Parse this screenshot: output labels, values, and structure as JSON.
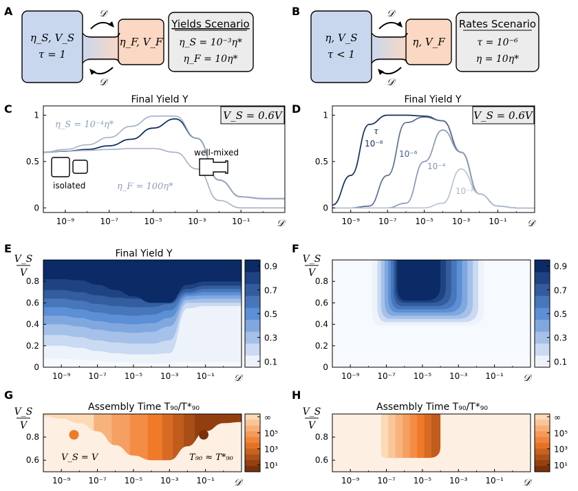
{
  "colors": {
    "blue_box": "#c9d7ee",
    "orange_box": "#fbd8c3",
    "grey_box": "#ececec",
    "navy": "#11305f",
    "slate": "#8f9fba",
    "orange_dark": "#8a3a0c",
    "orange_mid": "#f07a2a",
    "orange_light": "#fdf0e3"
  },
  "panel_labels": {
    "a": "A",
    "b": "B",
    "c": "C",
    "d": "D",
    "e": "E",
    "f": "F",
    "g": "G",
    "h": "H"
  },
  "scenario_a": {
    "left_line1": "η_S, V_S",
    "left_line2": "τ = 1",
    "right_line": "η_F, V_F",
    "arrow_label": "𝒟",
    "title": "Yields Scenario",
    "line1": "η_S = 10⁻³η*",
    "line2": "η_F = 10η*"
  },
  "scenario_b": {
    "left_line1": "η, V_S",
    "left_line2": "τ < 1",
    "right_line": "η, V_F",
    "arrow_label": "𝒟",
    "title": "Rates Scenario",
    "line1": "τ = 10⁻⁶",
    "line2": "η = 10η*"
  },
  "x_tick_labels": [
    "10⁻⁹",
    "10⁻⁷",
    "10⁻⁵",
    "10⁻³",
    "10⁻¹"
  ],
  "x_axis_label": "𝒟",
  "chart_data": [
    {
      "id": "C",
      "type": "line",
      "title": "Final Yield Y",
      "box_label": "V_S = 0.6V",
      "xscale": "log",
      "xlim": [
        1e-10,
        10
      ],
      "ylim": [
        -0.05,
        1.1
      ],
      "y_tick_labels": [
        "0",
        "0.5",
        "1"
      ],
      "annotations": {
        "top_curve": "η_S = 10⁻⁴η*",
        "bottom_curve": "η_F = 100η*",
        "left_cartoon": "isolated",
        "right_cartoon": "well-mixed"
      },
      "x": [
        -10,
        -9,
        -8,
        -7,
        -6,
        -5,
        -4,
        -3,
        -2,
        -1,
        0,
        1
      ],
      "series": [
        {
          "values": [
            0.6,
            0.61,
            0.63,
            0.67,
            0.74,
            0.86,
            0.96,
            0.75,
            0.3,
            0.12,
            0.1,
            0.1
          ]
        },
        {
          "values": [
            0.6,
            0.63,
            0.68,
            0.76,
            0.88,
            0.99,
            0.99,
            0.75,
            0.3,
            0.12,
            0.1,
            0.1
          ]
        },
        {
          "values": [
            0.6,
            0.61,
            0.62,
            0.63,
            0.64,
            0.64,
            0.6,
            0.42,
            0.08,
            0.0,
            0.0,
            0.0
          ]
        }
      ]
    },
    {
      "id": "D",
      "type": "line",
      "title": "Final Yield Y",
      "box_label": "V_S = 0.6V",
      "xscale": "log",
      "xlim": [
        1e-10,
        10
      ],
      "ylim": [
        -0.05,
        1.1
      ],
      "y_tick_labels": [
        "0",
        "0.5",
        "1"
      ],
      "annotations": {
        "tau_symbol": "τ"
      },
      "x": [
        -10,
        -9,
        -8,
        -7,
        -6,
        -5,
        -4,
        -3,
        -2,
        -1,
        0,
        1
      ],
      "series": [
        {
          "name": "10⁻⁸",
          "values": [
            0.03,
            0.35,
            0.9,
            1.0,
            1.0,
            0.99,
            0.94,
            0.6,
            0.15,
            0.02,
            0.0,
            0.0
          ]
        },
        {
          "name": "10⁻⁶",
          "values": [
            0.0,
            0.0,
            0.02,
            0.35,
            0.92,
            0.98,
            0.94,
            0.6,
            0.15,
            0.02,
            0.0,
            0.0
          ]
        },
        {
          "name": "10⁻⁴",
          "values": [
            0.0,
            0.0,
            0.0,
            0.0,
            0.05,
            0.5,
            0.84,
            0.6,
            0.15,
            0.02,
            0.0,
            0.0
          ]
        },
        {
          "name": "10⁻²",
          "values": [
            0.0,
            0.0,
            0.0,
            0.0,
            0.0,
            0.0,
            0.05,
            0.42,
            0.15,
            0.02,
            0.0,
            0.0
          ]
        }
      ]
    },
    {
      "id": "E",
      "type": "heatmap",
      "title": "Final Yield Y",
      "ylabel_num": "V_S",
      "ylabel_den": "V",
      "xscale": "log",
      "xlim": [
        1e-10,
        10
      ],
      "ylim": [
        0,
        1
      ],
      "y_tick_labels": [
        "0",
        "0.2",
        "0.4",
        "0.6",
        "0.8"
      ],
      "colorbar_tick_labels": [
        "0.9",
        "0.7",
        "0.5",
        "0.3",
        "0.1"
      ],
      "levels": [
        0.1,
        0.2,
        0.3,
        0.4,
        0.5,
        0.6,
        0.7,
        0.8,
        0.9
      ],
      "x": [
        -10,
        -9,
        -8,
        -7,
        -6,
        -5,
        -4,
        -3,
        -2,
        -1,
        0,
        1
      ],
      "level_boundaries_y": [
        [
          0.08,
          0.08,
          0.07,
          0.06,
          0.05,
          0.04,
          0.04,
          0.04,
          0.05,
          0.05,
          0.05,
          0.05
        ],
        [
          0.2,
          0.2,
          0.18,
          0.15,
          0.13,
          0.12,
          0.12,
          0.13,
          0.55,
          0.57,
          0.57,
          0.57
        ],
        [
          0.3,
          0.3,
          0.28,
          0.25,
          0.23,
          0.22,
          0.22,
          0.25,
          0.6,
          0.6,
          0.6,
          0.6
        ],
        [
          0.4,
          0.4,
          0.38,
          0.35,
          0.33,
          0.32,
          0.33,
          0.38,
          0.63,
          0.64,
          0.64,
          0.64
        ],
        [
          0.48,
          0.48,
          0.46,
          0.43,
          0.41,
          0.4,
          0.41,
          0.46,
          0.66,
          0.67,
          0.67,
          0.67
        ],
        [
          0.56,
          0.56,
          0.54,
          0.51,
          0.49,
          0.48,
          0.49,
          0.53,
          0.68,
          0.7,
          0.7,
          0.7
        ],
        [
          0.64,
          0.64,
          0.62,
          0.59,
          0.57,
          0.56,
          0.56,
          0.59,
          0.7,
          0.73,
          0.73,
          0.73
        ],
        [
          0.72,
          0.72,
          0.7,
          0.67,
          0.65,
          0.64,
          0.63,
          0.63,
          0.73,
          0.76,
          0.76,
          0.76
        ],
        [
          0.82,
          0.82,
          0.81,
          0.77,
          0.72,
          0.66,
          0.6,
          0.6,
          0.77,
          0.8,
          0.8,
          0.8
        ]
      ]
    },
    {
      "id": "F",
      "type": "heatmap",
      "title": "",
      "ylabel_num": "V_S",
      "ylabel_den": "V",
      "xscale": "log",
      "xlim": [
        1e-10,
        10
      ],
      "ylim": [
        0,
        1
      ],
      "y_tick_labels": [
        "0",
        "0.2",
        "0.4",
        "0.6",
        "0.8"
      ],
      "colorbar_tick_labels": [
        "0.9",
        "0.7",
        "0.5",
        "0.3",
        "0.1"
      ],
      "levels": [
        0.1,
        0.2,
        0.3,
        0.4,
        0.5,
        0.6,
        0.7,
        0.8,
        0.9
      ],
      "level_regions": [
        {
          "level": 0.1,
          "logx": [
            -7.8,
            -1.6
          ],
          "y": [
            0.39,
            1.0
          ]
        },
        {
          "level": 0.2,
          "logx": [
            -7.5,
            -1.9
          ],
          "y": [
            0.42,
            1.0
          ]
        },
        {
          "level": 0.3,
          "logx": [
            -7.3,
            -2.2
          ],
          "y": [
            0.45,
            1.0
          ]
        },
        {
          "level": 0.4,
          "logx": [
            -7.1,
            -2.5
          ],
          "y": [
            0.48,
            1.0
          ]
        },
        {
          "level": 0.5,
          "logx": [
            -6.9,
            -2.8
          ],
          "y": [
            0.51,
            1.0
          ]
        },
        {
          "level": 0.6,
          "logx": [
            -6.75,
            -3.1
          ],
          "y": [
            0.54,
            1.0
          ]
        },
        {
          "level": 0.7,
          "logx": [
            -6.6,
            -3.4
          ],
          "y": [
            0.57,
            1.0
          ]
        },
        {
          "level": 0.8,
          "logx": [
            -6.5,
            -3.7
          ],
          "y": [
            0.6,
            1.0
          ]
        },
        {
          "level": 0.9,
          "logx": [
            -6.4,
            -4.0
          ],
          "y": [
            0.62,
            1.0
          ]
        }
      ]
    },
    {
      "id": "G",
      "type": "heatmap",
      "title": "Assembly Time T₉₀/T*₉₀",
      "ylabel_num": "V_S",
      "ylabel_den": "V",
      "xscale": "log",
      "xlim": [
        1e-10,
        10
      ],
      "ylim": [
        0.5,
        1
      ],
      "y_tick_labels": [
        "0.6",
        "0.8"
      ],
      "colorbar_tick_labels": [
        "∞",
        "10⁵",
        "10³",
        "10¹"
      ],
      "annotations": {
        "left_dot": "V_S = V",
        "right_dot": "T₉₀ ≈ T*₉₀"
      },
      "markers": [
        {
          "logx": -8.3,
          "y": 0.82
        },
        {
          "logx": -1.1,
          "y": 0.82
        }
      ],
      "region_lower_boundary_y": {
        "x": [
          -10,
          -9,
          -8,
          -7,
          -6,
          -5,
          -4,
          -3,
          -2,
          -1,
          0,
          1
        ],
        "y": [
          0.98,
          0.96,
          0.92,
          0.85,
          0.73,
          0.64,
          0.6,
          0.6,
          0.72,
          0.85,
          0.92,
          0.93
        ]
      },
      "band_edges_logx": [
        -10,
        -7.2,
        -6.2,
        -5.2,
        -4.2,
        -3.4,
        -2.8,
        -2.2,
        -1.6,
        1.05
      ],
      "band_values_log10": [
        6,
        5,
        4.5,
        4,
        3.5,
        3,
        2.5,
        2,
        1.5
      ]
    },
    {
      "id": "H",
      "type": "heatmap",
      "title": "Assembly Time T₉₀/T*₉₀",
      "ylabel_num": "V_S",
      "ylabel_den": "V",
      "xscale": "log",
      "xlim": [
        1e-10,
        10
      ],
      "ylim": [
        0.5,
        1
      ],
      "y_tick_labels": [
        "0.6",
        "0.8"
      ],
      "colorbar_tick_labels": [
        "∞",
        "10⁵",
        "10³",
        "10¹"
      ],
      "region_logx": [
        -7.3,
        -4.0
      ],
      "region_y": [
        0.62,
        1.0
      ],
      "band_edges_logx": [
        -7.3,
        -6.9,
        -6.5,
        -6.1,
        -5.7,
        -5.3,
        -4.9,
        -4.5,
        -4.0
      ],
      "band_values_log10": [
        6,
        5.5,
        5,
        4.5,
        4,
        3.5,
        3,
        2.5
      ]
    }
  ]
}
